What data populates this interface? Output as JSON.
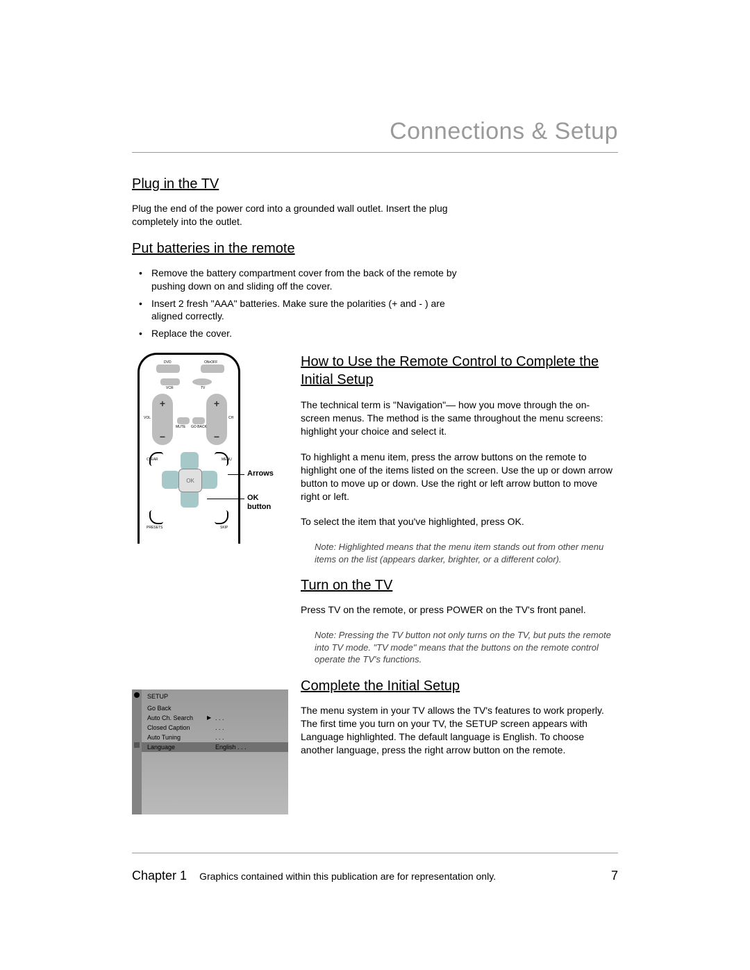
{
  "chapterTitle": "Connections & Setup",
  "s1": {
    "heading": "Plug in the TV",
    "body": "Plug the end of the power cord into a grounded wall outlet. Insert the plug completely into the outlet."
  },
  "s2": {
    "heading": "Put batteries in the remote",
    "b1": "Remove the battery compartment cover from the back of the remote by pushing down on and sliding off the cover.",
    "b2": "Insert 2 fresh \"AAA\" batteries. Make sure the polarities (+ and - ) are aligned correctly.",
    "b3": "Replace the cover."
  },
  "remote": {
    "dvd": "DVD",
    "onoff": "ON•OFF",
    "vcr": "VCR",
    "tv": "TV",
    "vol": "VOL",
    "ch": "CH",
    "mute": "MUTE",
    "goback": "GO BACK",
    "clear": "CLEAR",
    "menu": "MENU",
    "presets": "PRESETS",
    "skip": "SKIP",
    "ok": "OK",
    "callout_arrows": "Arrows",
    "callout_ok": "OK\nbutton"
  },
  "s3": {
    "heading": "How to Use the Remote Control to Complete the Initial Setup",
    "p1": "The technical term is \"Navigation\"— how you move through the on-screen menus. The method is the same throughout the menu screens: highlight your choice and select it.",
    "p2": "To highlight a menu item, press the arrow buttons on the remote to highlight one of the items listed on the screen. Use the up or down arrow button to move up or down. Use the right or left arrow button to move right or left.",
    "p3": "To select the item that you've highlighted, press OK.",
    "note": "Note: Highlighted means that the menu item stands out from other menu items on the list (appears darker, brighter, or a different color)."
  },
  "s4": {
    "heading": "Turn on the TV",
    "p1": "Press TV on the remote, or press POWER on the TV's front panel.",
    "note": "Note: Pressing the TV button not only turns on the TV, but puts the remote into TV mode. \"TV mode\" means that the buttons on the remote control operate the TV's functions."
  },
  "menu": {
    "title": "SETUP",
    "i1": "Go Back",
    "i2": "Auto Ch. Search",
    "i3": "Closed Caption",
    "i4": "Auto Tuning",
    "i5": "Language",
    "v2": ". . .",
    "v3": ". . .",
    "v4": ". . .",
    "v5": "English . . .",
    "arrow": "▶"
  },
  "s5": {
    "heading": "Complete the Initial Setup",
    "p1": "The menu system in your TV allows the TV's features to work properly. The first time you turn on your TV, the SETUP screen appears with Language highlighted. The default language is English. To choose another language, press the right arrow button on the remote."
  },
  "footer": {
    "chapter": "Chapter 1",
    "note": "Graphics contained within this publication are for representation only.",
    "page": "7"
  }
}
